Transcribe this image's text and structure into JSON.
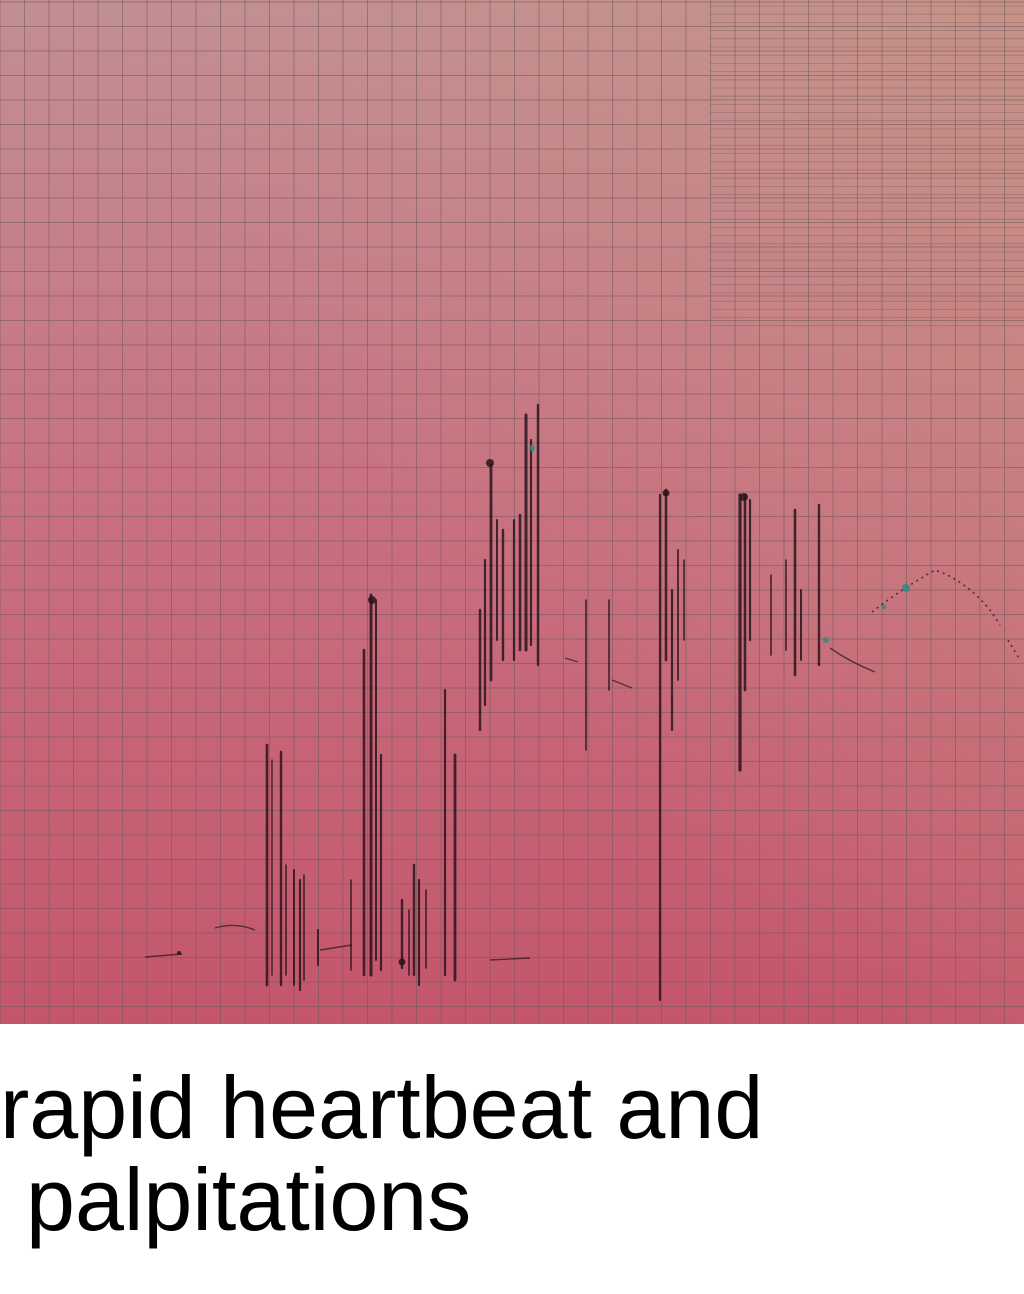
{
  "caption": {
    "line1": "rapid heartbeat and",
    "line2": "palpitations"
  },
  "colors": {
    "paper_top": "#c18e93",
    "paper_bottom": "#c4586d",
    "grid_line": "#6f5a5c",
    "trace": "#2a141c",
    "accent_teal": "#2f8a84",
    "caption_text": "#000000"
  },
  "icons": {
    "artwork": "ecg-paper-illustration"
  }
}
